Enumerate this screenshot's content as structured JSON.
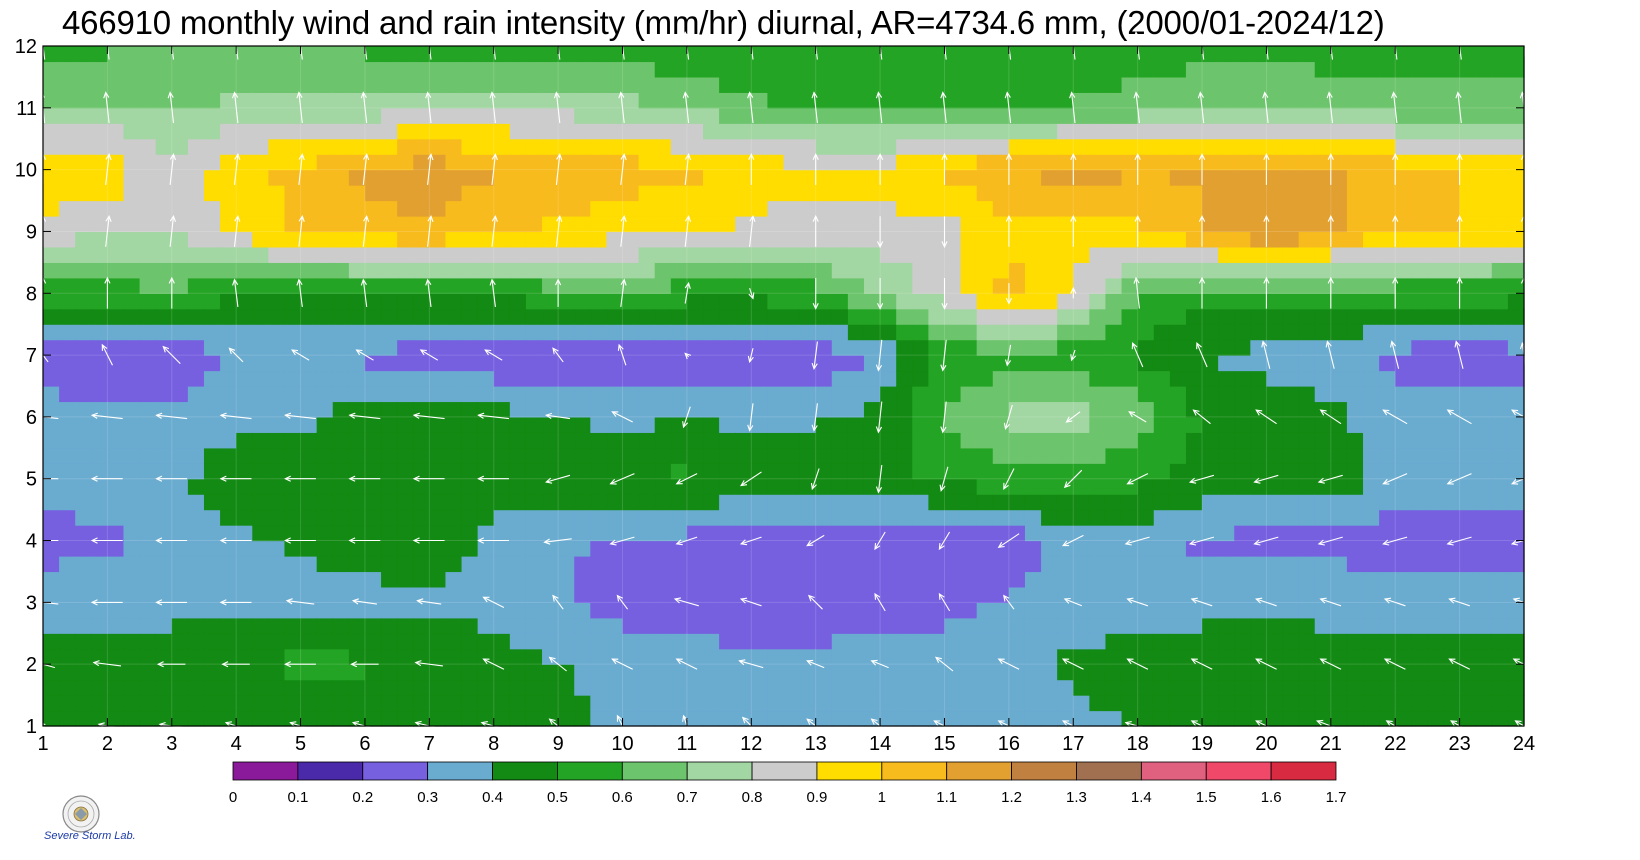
{
  "chart_data": {
    "type": "heatmap",
    "title": "466910 monthly wind and rain intensity (mm/hr) diurnal, AR=4734.6 mm, (2000/01-2024/12)",
    "x_ticks": [
      "1",
      "2",
      "3",
      "4",
      "5",
      "6",
      "7",
      "8",
      "9",
      "10",
      "11",
      "12",
      "13",
      "14",
      "15",
      "16",
      "17",
      "18",
      "19",
      "20",
      "21",
      "22",
      "23",
      "24"
    ],
    "y_ticks": [
      "1",
      "2",
      "3",
      "4",
      "5",
      "6",
      "7",
      "8",
      "9",
      "10",
      "11",
      "12"
    ],
    "xlim": [
      1,
      24
    ],
    "ylim": [
      1,
      12
    ],
    "colorbar": {
      "ticks": [
        "0",
        "0.1",
        "0.2",
        "0.3",
        "0.4",
        "0.5",
        "0.6",
        "0.7",
        "0.8",
        "0.9",
        "1",
        "1.1",
        "1.2",
        "1.3",
        "1.4",
        "1.5",
        "1.6",
        "1.7"
      ],
      "colors": [
        "#8b1a9a",
        "#4a2aa8",
        "#7660e0",
        "#6aabd0",
        "#138a13",
        "#24a424",
        "#6cc46c",
        "#a2d6a2",
        "#cccccc",
        "#ffdd00",
        "#f8bb1e",
        "#e2a030",
        "#c08040",
        "#a07050",
        "#e06080",
        "#f04868",
        "#d82a40"
      ]
    },
    "rows": [
      {
        "y": 1,
        "values": [
          0.44,
          0.44,
          0.44,
          0.44,
          0.43,
          0.43,
          0.43,
          0.44,
          0.43,
          0.37,
          0.36,
          0.35,
          0.35,
          0.35,
          0.35,
          0.35,
          0.37,
          0.41,
          0.43,
          0.44,
          0.44,
          0.44,
          0.44,
          0.44
        ]
      },
      {
        "y": 2,
        "values": [
          0.42,
          0.43,
          0.45,
          0.46,
          0.53,
          0.51,
          0.44,
          0.42,
          0.41,
          0.37,
          0.35,
          0.33,
          0.34,
          0.35,
          0.35,
          0.37,
          0.42,
          0.44,
          0.45,
          0.46,
          0.44,
          0.44,
          0.44,
          0.44
        ]
      },
      {
        "y": 3,
        "values": [
          0.37,
          0.37,
          0.37,
          0.38,
          0.38,
          0.38,
          0.39,
          0.38,
          0.31,
          0.26,
          0.24,
          0.23,
          0.23,
          0.23,
          0.27,
          0.31,
          0.35,
          0.36,
          0.37,
          0.38,
          0.37,
          0.34,
          0.35,
          0.36
        ]
      },
      {
        "y": 4,
        "values": [
          0.25,
          0.28,
          0.33,
          0.38,
          0.41,
          0.42,
          0.44,
          0.38,
          0.32,
          0.28,
          0.27,
          0.23,
          0.22,
          0.23,
          0.22,
          0.24,
          0.34,
          0.36,
          0.28,
          0.27,
          0.27,
          0.25,
          0.24,
          0.26
        ]
      },
      {
        "y": 5,
        "values": [
          0.35,
          0.36,
          0.37,
          0.47,
          0.46,
          0.44,
          0.45,
          0.43,
          0.47,
          0.49,
          0.52,
          0.46,
          0.5,
          0.48,
          0.52,
          0.57,
          0.56,
          0.52,
          0.47,
          0.46,
          0.46,
          0.36,
          0.35,
          0.35
        ]
      },
      {
        "y": 6,
        "values": [
          0.34,
          0.33,
          0.32,
          0.37,
          0.38,
          0.44,
          0.46,
          0.44,
          0.4,
          0.38,
          0.39,
          0.38,
          0.38,
          0.43,
          0.61,
          0.72,
          0.75,
          0.67,
          0.48,
          0.45,
          0.42,
          0.35,
          0.34,
          0.33
        ]
      },
      {
        "y": 7,
        "values": [
          0.25,
          0.19,
          0.24,
          0.3,
          0.29,
          0.28,
          0.26,
          0.22,
          0.2,
          0.19,
          0.22,
          0.24,
          0.23,
          0.31,
          0.52,
          0.57,
          0.55,
          0.49,
          0.4,
          0.37,
          0.35,
          0.27,
          0.24,
          0.28
        ]
      },
      {
        "y": 8,
        "values": [
          0.55,
          0.56,
          0.58,
          0.52,
          0.48,
          0.5,
          0.52,
          0.53,
          0.55,
          0.58,
          0.54,
          0.53,
          0.56,
          0.7,
          0.86,
          1.05,
          0.9,
          0.58,
          0.53,
          0.55,
          0.55,
          0.54,
          0.54,
          0.53
        ]
      },
      {
        "y": 9,
        "values": [
          0.86,
          0.81,
          0.8,
          0.93,
          1.02,
          1.06,
          1.08,
          1.02,
          0.98,
          0.94,
          0.92,
          0.87,
          0.87,
          0.86,
          0.86,
          0.96,
          0.95,
          0.98,
          1.08,
          1.22,
          1.12,
          1.02,
          1.0,
          0.96
        ]
      },
      {
        "y": 10,
        "values": [
          0.98,
          0.98,
          0.8,
          0.98,
          1.02,
          1.13,
          1.16,
          1.11,
          1.08,
          1.05,
          1.02,
          0.96,
          0.93,
          0.93,
          1.03,
          1.1,
          1.15,
          1.1,
          1.12,
          1.14,
          1.11,
          1.05,
          1.0,
          1.0
        ]
      },
      {
        "y": 11,
        "values": [
          0.72,
          0.71,
          0.7,
          0.72,
          0.73,
          0.74,
          0.77,
          0.78,
          0.77,
          0.73,
          0.68,
          0.62,
          0.58,
          0.56,
          0.57,
          0.58,
          0.61,
          0.64,
          0.66,
          0.67,
          0.66,
          0.65,
          0.64,
          0.63
        ]
      },
      {
        "y": 12,
        "values": [
          0.55,
          0.58,
          0.62,
          0.6,
          0.59,
          0.58,
          0.57,
          0.56,
          0.55,
          0.55,
          0.53,
          0.52,
          0.52,
          0.51,
          0.52,
          0.53,
          0.54,
          0.55,
          0.57,
          0.58,
          0.56,
          0.55,
          0.54,
          0.55
        ]
      }
    ],
    "wind_arrows_grid": {
      "u": [
        [
          -0.2,
          -0.5,
          -0.7,
          -0.6,
          -0.6,
          -0.7,
          -0.8,
          -0.7,
          -0.5,
          -0.3,
          -0.2,
          -0.5,
          -0.5,
          -0.5,
          -0.6,
          -0.6,
          -0.6,
          -0.7,
          -0.6,
          -0.6,
          -0.8,
          -0.5,
          -0.5,
          -0.5
        ],
        [
          -0.7,
          -0.8,
          -0.8,
          -0.8,
          -0.9,
          -0.8,
          -0.8,
          -0.6,
          -0.5,
          -0.6,
          -0.6,
          -0.7,
          -0.5,
          -0.5,
          -0.5,
          -0.6,
          -0.6,
          -0.6,
          -0.6,
          -0.6,
          -0.6,
          -0.6,
          -0.6,
          -0.6
        ],
        [
          -0.9,
          -0.9,
          -0.9,
          -0.9,
          -0.8,
          -0.7,
          -0.7,
          -0.6,
          -0.3,
          -0.3,
          -0.7,
          -0.6,
          -0.4,
          -0.3,
          -0.3,
          -0.3,
          -0.5,
          -0.6,
          -0.6,
          -0.6,
          -0.6,
          -0.6,
          -0.6,
          -0.6
        ],
        [
          -0.9,
          -0.9,
          -0.9,
          -0.9,
          -0.9,
          -0.9,
          -0.9,
          -0.9,
          -0.8,
          -0.7,
          -0.6,
          -0.6,
          -0.5,
          -0.3,
          -0.3,
          -0.6,
          -0.6,
          -0.7,
          -0.7,
          -0.7,
          -0.7,
          -0.7,
          -0.7,
          -0.7
        ],
        [
          -0.9,
          -0.9,
          -0.9,
          -0.9,
          -0.9,
          -0.9,
          -0.9,
          -0.9,
          -0.7,
          -0.7,
          -0.6,
          -0.6,
          -0.2,
          -0.1,
          -0.2,
          -0.3,
          -0.5,
          -0.6,
          -0.7,
          -0.7,
          -0.7,
          -0.7,
          -0.7,
          -0.7
        ],
        [
          -0.9,
          -0.9,
          -0.9,
          -0.9,
          -0.9,
          -0.9,
          -0.9,
          -0.9,
          -0.7,
          -0.6,
          -0.2,
          -0.1,
          -0.1,
          -0.1,
          -0.1,
          -0.2,
          -0.4,
          -0.5,
          -0.5,
          -0.6,
          -0.6,
          -0.7,
          -0.7,
          -0.7
        ],
        [
          -0.3,
          -0.3,
          -0.5,
          -0.4,
          -0.5,
          -0.5,
          -0.5,
          -0.5,
          -0.3,
          -0.2,
          -0.1,
          -0.1,
          -0.1,
          -0.1,
          -0.1,
          -0.1,
          -0.1,
          -0.3,
          -0.3,
          -0.2,
          -0.2,
          -0.2,
          -0.2,
          -0.1
        ],
        [
          0.0,
          0.0,
          0.0,
          -0.1,
          -0.1,
          -0.1,
          -0.1,
          -0.1,
          0.0,
          0.1,
          0.1,
          0.1,
          0.0,
          0.0,
          0.0,
          0.0,
          0.0,
          -0.1,
          0.0,
          0.0,
          0.0,
          0.0,
          0.0,
          0.0
        ],
        [
          0.0,
          0.1,
          0.1,
          0.1,
          0.1,
          0.1,
          0.1,
          0.1,
          0.1,
          0.1,
          0.1,
          0.1,
          0.0,
          0.0,
          0.0,
          0.0,
          0.0,
          0.0,
          0.0,
          0.0,
          0.0,
          0.0,
          0.0,
          0.0
        ],
        [
          0.0,
          0.1,
          0.1,
          0.1,
          0.1,
          0.1,
          0.1,
          0.1,
          0.1,
          0.1,
          0.1,
          0.0,
          0.0,
          0.0,
          0.0,
          0.0,
          0.0,
          0.0,
          0.0,
          0.0,
          0.0,
          0.0,
          0.0,
          0.0
        ],
        [
          -0.1,
          -0.1,
          -0.1,
          -0.1,
          -0.1,
          -0.1,
          -0.1,
          -0.1,
          -0.1,
          -0.1,
          -0.1,
          -0.1,
          -0.1,
          -0.1,
          -0.1,
          -0.1,
          -0.1,
          -0.1,
          -0.1,
          -0.1,
          -0.1,
          -0.1,
          -0.1,
          -0.1
        ],
        [
          -0.1,
          -0.1,
          -0.1,
          -0.1,
          -0.1,
          -0.1,
          -0.1,
          -0.1,
          -0.1,
          -0.1,
          -0.1,
          -0.1,
          -0.1,
          -0.1,
          -0.1,
          -0.1,
          -0.1,
          -0.1,
          -0.1,
          -0.1,
          -0.1,
          -0.1,
          -0.1,
          -0.1
        ]
      ],
      "v": [
        [
          0.2,
          0.1,
          0.1,
          0.2,
          0.2,
          0.2,
          0.2,
          0.2,
          0.4,
          0.6,
          0.6,
          0.5,
          0.4,
          0.4,
          0.3,
          0.3,
          0.3,
          0.2,
          0.3,
          0.3,
          0.3,
          0.3,
          0.3,
          0.3
        ],
        [
          0.2,
          0.1,
          0.0,
          0.0,
          0.0,
          0.0,
          0.1,
          0.3,
          0.4,
          0.3,
          0.3,
          0.2,
          0.2,
          0.2,
          0.4,
          0.3,
          0.3,
          0.3,
          0.3,
          0.3,
          0.3,
          0.3,
          0.3,
          0.3
        ],
        [
          0.1,
          0.0,
          0.0,
          0.0,
          0.1,
          0.1,
          0.1,
          0.3,
          0.4,
          0.4,
          0.2,
          0.2,
          0.4,
          0.5,
          0.5,
          0.4,
          0.2,
          0.2,
          0.2,
          0.2,
          0.2,
          0.2,
          0.2,
          0.2
        ],
        [
          0.0,
          0.0,
          0.0,
          0.0,
          0.0,
          0.0,
          0.0,
          0.0,
          -0.1,
          -0.2,
          -0.2,
          -0.2,
          -0.3,
          -0.5,
          -0.5,
          -0.4,
          -0.3,
          -0.2,
          -0.2,
          -0.2,
          -0.2,
          -0.2,
          -0.2,
          -0.2
        ],
        [
          0.0,
          0.0,
          0.0,
          0.0,
          0.0,
          0.0,
          0.0,
          0.0,
          -0.2,
          -0.3,
          -0.3,
          -0.4,
          -0.6,
          -0.8,
          -0.7,
          -0.6,
          -0.5,
          -0.3,
          -0.2,
          -0.2,
          -0.2,
          -0.3,
          -0.3,
          -0.3
        ],
        [
          0.1,
          0.1,
          0.1,
          0.1,
          0.1,
          0.1,
          0.1,
          0.1,
          0.1,
          0.3,
          -0.6,
          -0.8,
          -0.8,
          -0.9,
          -0.9,
          -0.7,
          -0.3,
          0.3,
          0.4,
          0.4,
          0.4,
          0.4,
          0.4,
          0.4
        ],
        [
          0.4,
          0.6,
          0.5,
          0.4,
          0.3,
          0.3,
          0.3,
          0.3,
          0.4,
          0.6,
          0.1,
          -0.4,
          -0.8,
          -0.9,
          -0.9,
          -0.6,
          -0.3,
          0.7,
          0.7,
          0.8,
          0.8,
          0.8,
          0.8,
          0.7
        ],
        [
          0.9,
          0.9,
          0.9,
          0.8,
          0.8,
          0.8,
          0.8,
          0.8,
          0.8,
          0.8,
          0.6,
          -0.3,
          -0.9,
          -0.9,
          -0.9,
          -0.6,
          0.3,
          0.9,
          0.9,
          0.9,
          0.9,
          0.9,
          0.9,
          0.9
        ],
        [
          0.9,
          0.9,
          0.9,
          0.9,
          0.9,
          0.9,
          0.9,
          0.9,
          0.9,
          0.9,
          0.9,
          0.9,
          0.9,
          -0.9,
          -0.9,
          0.9,
          0.9,
          0.9,
          0.9,
          0.9,
          0.9,
          0.9,
          0.9,
          0.9
        ],
        [
          0.9,
          0.9,
          0.9,
          0.9,
          0.9,
          0.9,
          0.9,
          0.9,
          0.9,
          0.9,
          0.9,
          0.9,
          0.9,
          0.9,
          0.9,
          0.9,
          0.9,
          0.9,
          0.9,
          0.9,
          0.9,
          0.9,
          0.9,
          0.9
        ],
        [
          0.9,
          0.9,
          0.9,
          0.9,
          0.9,
          0.9,
          0.9,
          0.9,
          0.9,
          0.9,
          0.9,
          0.9,
          0.9,
          0.9,
          0.9,
          0.9,
          0.9,
          0.9,
          0.9,
          0.9,
          0.9,
          0.9,
          0.9,
          0.9
        ],
        [
          0.8,
          0.8,
          0.8,
          0.8,
          0.8,
          0.8,
          0.8,
          0.8,
          0.8,
          0.8,
          0.8,
          0.8,
          0.8,
          0.8,
          0.8,
          0.8,
          0.8,
          0.8,
          0.8,
          0.8,
          0.8,
          0.8,
          0.8,
          0.8
        ]
      ]
    },
    "grid": true,
    "legend_position": "bottom"
  },
  "logo": {
    "lab_text": "Severe Storm Lab."
  }
}
